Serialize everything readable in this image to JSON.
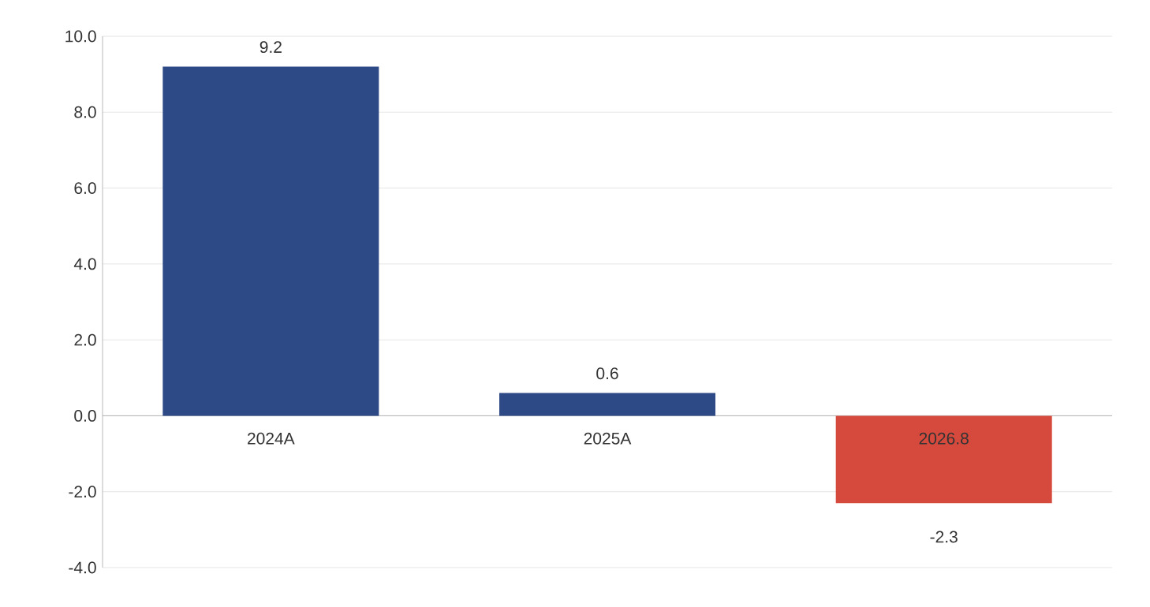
{
  "chart_data": {
    "type": "bar",
    "categories": [
      "2024A",
      "2025A",
      "2026.8"
    ],
    "values": [
      9.2,
      0.6,
      -2.3
    ],
    "colors": [
      "#2e4a86",
      "#2e4a86",
      "#d64a3e"
    ],
    "value_labels": [
      "9.2",
      "0.6",
      "-2.3"
    ],
    "ylim": [
      -4,
      10
    ],
    "yticks": [
      {
        "value": -4,
        "label": "-4.0"
      },
      {
        "value": -2,
        "label": "-2.0"
      },
      {
        "value": 0,
        "label": "0.0"
      },
      {
        "value": 2,
        "label": "2.0"
      },
      {
        "value": 4,
        "label": "4.0"
      },
      {
        "value": 6,
        "label": "6.0"
      },
      {
        "value": 8,
        "label": "8.0"
      },
      {
        "value": 10,
        "label": "10.0"
      }
    ],
    "grid": "y"
  }
}
